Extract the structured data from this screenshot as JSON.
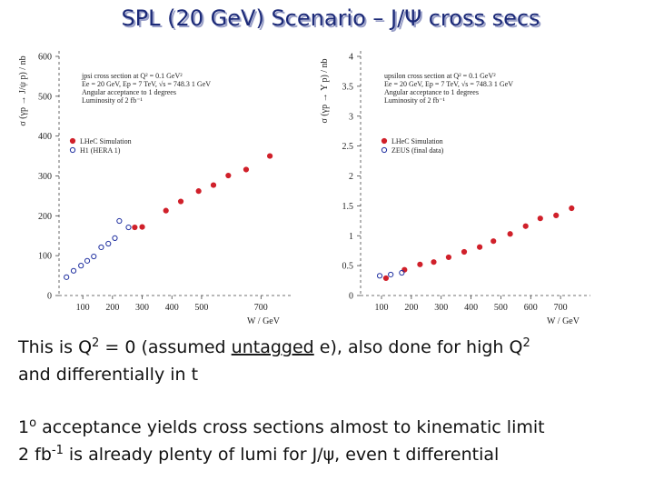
{
  "title": "SPL (20 GeV) Scenario – J/Ψ cross secs",
  "body": [
    [
      {
        "text": "This is Q"
      },
      {
        "text": "2",
        "sup": true
      },
      {
        "text": " = 0 (assumed "
      },
      {
        "text": "untagged",
        "underline": true
      },
      {
        "text": " e), also done for high Q"
      },
      {
        "text": "2",
        "sup": true
      }
    ],
    [
      {
        "text": "and differentially in t"
      }
    ],
    [
      {
        "text": "1"
      },
      {
        "text": "o",
        "sup": true
      },
      {
        "text": " acceptance yields cross sections almost to kinematic limit"
      }
    ],
    [
      {
        "text": "2 fb"
      },
      {
        "text": "-1",
        "sup": true
      },
      {
        "text": " is already plenty of lumi for J/ψ, even t differential"
      }
    ]
  ],
  "chart_data": [
    {
      "type": "scatter",
      "x_label": "W / GeV",
      "y_label": "σ (γp → J/ψ p) / nb",
      "annotations": [
        "jpsi cross section at Q² = 0.1 GeV²",
        "Ee = 20 GeV, Ep = 7 TeV, √s = 748.3 1 GeV",
        "Angular acceptance to 1 degrees",
        "Luminosity of 2 fb⁻¹"
      ],
      "xlim": [
        20,
        800
      ],
      "xticks": [
        100,
        200,
        300,
        400,
        500,
        700
      ],
      "ylim": [
        0,
        600
      ],
      "yticks": [
        0,
        100,
        200,
        300,
        400,
        500,
        600
      ],
      "series": [
        {
          "name": "LHeC Simulation",
          "color": "#d0202a",
          "marker": "filled",
          "x": [
            275,
            300,
            380,
            430,
            490,
            540,
            590,
            650,
            730
          ],
          "values": [
            171,
            172,
            213,
            236,
            262,
            277,
            301,
            316,
            350
          ]
        },
        {
          "name": "H1 (HERA 1)",
          "color": "#2030a0",
          "marker": "open",
          "x": [
            45,
            69,
            94,
            115,
            137,
            162,
            186,
            208,
            223,
            254
          ],
          "values": [
            46,
            62,
            75,
            87,
            98,
            121,
            130,
            144,
            187,
            171
          ]
        }
      ]
    },
    {
      "type": "scatter",
      "x_label": "W / GeV",
      "y_label": "σ (γp → Υ p) / nb",
      "annotations": [
        "upsilon cross section at Q² = 0.1 GeV²",
        "Ee = 20 GeV, Ep = 7 TeV, √s = 748.3 1 GeV",
        "Angular acceptance to 1 degrees",
        "Luminosity of 2 fb⁻¹"
      ],
      "xlim": [
        30,
        800
      ],
      "xticks": [
        100,
        200,
        300,
        400,
        500,
        600,
        700
      ],
      "ylim": [
        0,
        4
      ],
      "yticks": [
        0,
        0.5,
        1,
        1.5,
        2,
        2.5,
        3,
        3.5,
        4
      ],
      "series": [
        {
          "name": "LHeC Simulation",
          "color": "#d0202a",
          "marker": "filled",
          "x": [
            115,
            177,
            229,
            275,
            325,
            377,
            429,
            475,
            531,
            583,
            632,
            685,
            737
          ],
          "values": [
            0.29,
            0.43,
            0.52,
            0.56,
            0.64,
            0.73,
            0.81,
            0.91,
            1.03,
            1.16,
            1.29,
            1.34,
            1.46
          ]
        },
        {
          "name": "ZEUS (final data)",
          "color": "#2030a0",
          "marker": "open",
          "x": [
            94,
            131,
            168
          ],
          "values": [
            0.33,
            0.35,
            0.38
          ]
        }
      ]
    }
  ]
}
